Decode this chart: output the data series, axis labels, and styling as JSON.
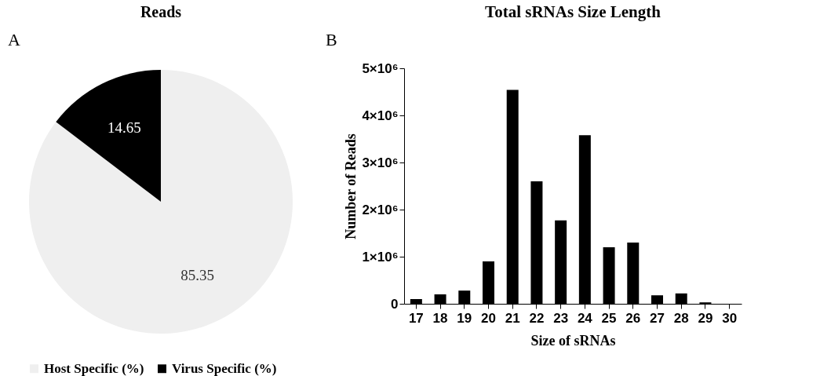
{
  "chart_data": [
    {
      "type": "pie",
      "title": "Reads",
      "annotations": [
        "A"
      ],
      "categories": [
        "Host Specific (%)",
        "Virus Specific (%)"
      ],
      "values": [
        85.35,
        14.65
      ],
      "colors": [
        "#efefef",
        "#000000"
      ],
      "data_labels": true,
      "legend": "bottom"
    },
    {
      "type": "bar",
      "title": "Total sRNAs Size Length",
      "annotations": [
        "B"
      ],
      "xlabel": "Size of sRNAs",
      "ylabel": "Number of Reads",
      "categories": [
        "17",
        "18",
        "19",
        "20",
        "21",
        "22",
        "23",
        "24",
        "25",
        "26",
        "27",
        "28",
        "29",
        "30"
      ],
      "values": [
        100000,
        200000,
        280000,
        900000,
        4540000,
        2600000,
        1770000,
        3580000,
        1200000,
        1300000,
        180000,
        220000,
        30000,
        0
      ],
      "color": "#000000",
      "ylim": [
        0,
        5000000
      ],
      "yticks": [
        0,
        {
          "value": 1000000,
          "label": "1×10⁶"
        },
        {
          "value": 2000000,
          "label": "2×10⁶"
        },
        {
          "value": 3000000,
          "label": "3×10⁶"
        },
        {
          "value": 4000000,
          "label": "4×10⁶"
        },
        {
          "value": 5000000,
          "label": "5×10⁶"
        }
      ],
      "grid": false
    }
  ]
}
